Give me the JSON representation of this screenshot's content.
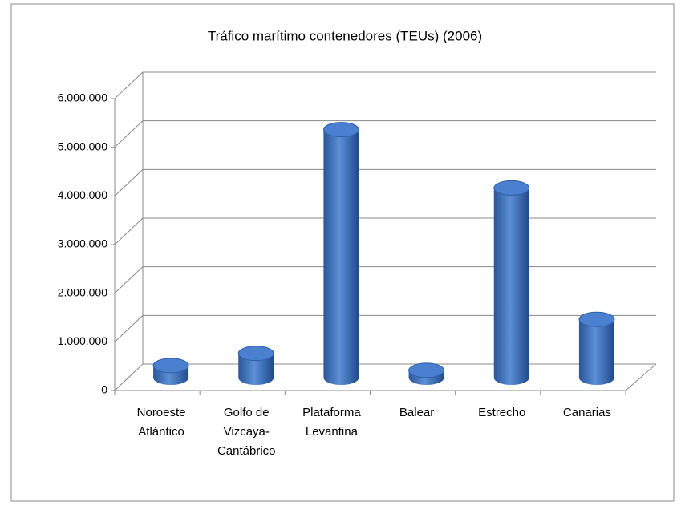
{
  "chart_data": {
    "type": "bar",
    "title": "Tráfico marítimo contenedores (TEUs) (2006)",
    "categories": [
      "Noroeste Atlántico",
      "Golfo de Vizcaya-Cantábrico",
      "Plataforma Levantina",
      "Balear",
      "Estrecho",
      "Canarias"
    ],
    "values": [
      250000,
      500000,
      5100000,
      150000,
      3900000,
      1200000
    ],
    "color": "#3f72c0",
    "ylim": [
      0,
      6000000
    ],
    "yticks": [
      0,
      {
        "value": 1000000,
        "label": "1.000.000"
      },
      {
        "value": 2000000,
        "label": "2.000.000"
      },
      {
        "value": 3000000,
        "label": "3.000.000"
      },
      {
        "value": 4000000,
        "label": "4.000.000"
      },
      {
        "value": 5000000,
        "label": "5.000.000"
      },
      {
        "value": 6000000,
        "label": "6.000.000"
      }
    ],
    "grid": true
  }
}
